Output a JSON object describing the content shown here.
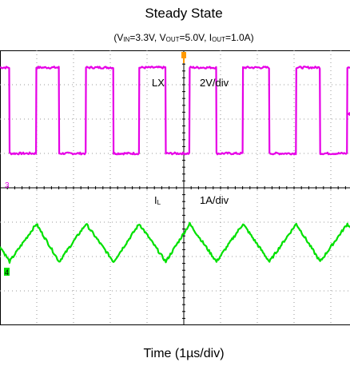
{
  "chart_data": {
    "type": "line",
    "title": "Steady State",
    "subtitle": {
      "parts": [
        {
          "t": "(V",
          "sub": false
        },
        {
          "t": "IN",
          "sub": true
        },
        {
          "t": "=3.3V, V",
          "sub": false
        },
        {
          "t": "OUT",
          "sub": true
        },
        {
          "t": "=5.0V, I",
          "sub": false
        },
        {
          "t": "OUT",
          "sub": true
        },
        {
          "t": "=1.0A)",
          "sub": false
        }
      ]
    },
    "xlabel": "Time (1µs/div)",
    "grid": true,
    "x_divisions": 10,
    "y_divisions": 8,
    "channel_markers": {
      "ch3": "3",
      "ch4": "4"
    },
    "series": [
      {
        "name": "LX",
        "scale_label": "2V/div",
        "color": "#e600e6",
        "high_level_div": 3.5,
        "low_level_div": 1.0,
        "channel_marker": "3",
        "x_div": [
          0.0,
          0.25,
          0.26,
          0.98,
          0.99,
          1.6,
          1.61,
          2.33,
          2.34,
          3.08,
          3.09,
          3.78,
          3.79,
          4.5,
          4.51,
          5.15,
          5.16,
          5.88,
          5.89,
          6.6,
          6.61,
          7.32,
          7.33,
          8.05,
          8.06,
          8.7,
          8.71,
          9.44,
          9.45,
          10.0
        ],
        "y_div": [
          3.5,
          3.5,
          1.0,
          1.0,
          3.5,
          3.5,
          1.0,
          1.0,
          3.5,
          3.5,
          1.0,
          1.0,
          3.5,
          3.5,
          1.0,
          1.0,
          3.5,
          3.5,
          1.0,
          1.0,
          3.5,
          3.5,
          1.0,
          1.0,
          3.5,
          3.5,
          1.0,
          1.0,
          3.5,
          3.5
        ]
      },
      {
        "name": "IL",
        "name_main": "I",
        "name_sub": "L",
        "scale_label": "1A/div",
        "color": "#00e000",
        "channel_marker": "4",
        "x_div": [
          0.0,
          0.26,
          0.99,
          1.61,
          2.34,
          3.09,
          3.79,
          4.51,
          5.16,
          5.89,
          6.61,
          7.33,
          8.06,
          8.71,
          9.45,
          10.0
        ],
        "y_div": [
          -1.7,
          -2.15,
          -1.05,
          -2.15,
          -1.05,
          -2.15,
          -1.05,
          -2.15,
          -1.05,
          -2.15,
          -1.05,
          -2.15,
          -1.05,
          -2.15,
          -1.05,
          -1.7
        ]
      }
    ]
  }
}
